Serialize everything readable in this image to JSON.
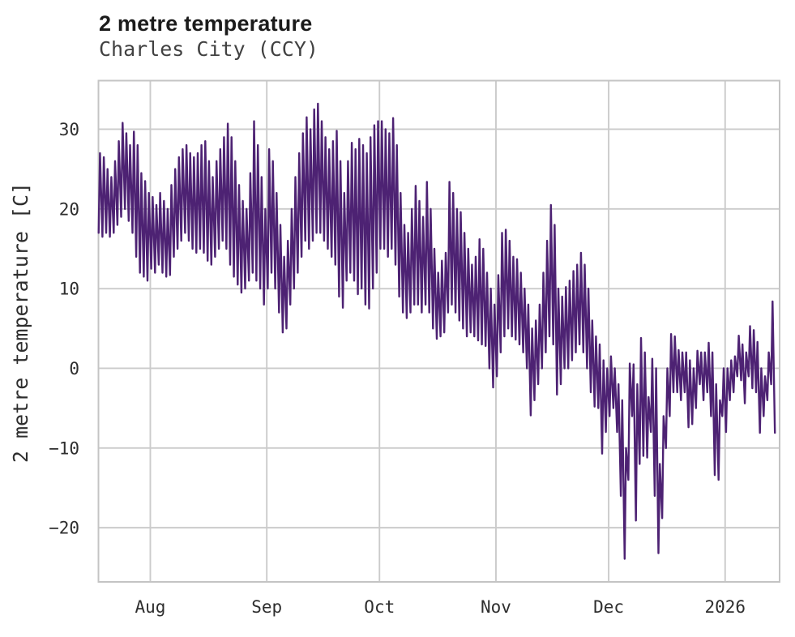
{
  "header": {
    "title": "2 metre temperature",
    "subtitle": "Charles City (CCY)"
  },
  "chart_data": {
    "type": "line",
    "title": "2 metre temperature",
    "subtitle": "Charles City (CCY)",
    "xlabel": "",
    "ylabel": "2 metre temperature [C]",
    "grid": true,
    "legend": "none",
    "line_color": "#4d2273",
    "grid_color": "#cbcbcb",
    "border_color": "#c4c4c4",
    "tick_text_color": "#2e2e2e",
    "background_color": "#ffffff",
    "x_tick_labels": [
      "Aug",
      "Sep",
      "Oct",
      "Nov",
      "Dec",
      "2026"
    ],
    "x_tick_days": [
      14,
      45,
      75,
      106,
      136,
      167
    ],
    "x_domain_days": [
      0.2,
      181.5
    ],
    "y_ticks": [
      30,
      20,
      10,
      0,
      -10,
      -20
    ],
    "y_domain": [
      -26.8,
      36.1
    ],
    "start_date": "Jul 18 (2025)",
    "end_date": "Jan 14 (2026)",
    "sampling": "daily minimum and maximum estimated from the plotted hourly curve; day 0 = Jul 18",
    "observed_extremes": {
      "max_c": 33.2,
      "max_around": "Sep 14",
      "min_c": -23.9,
      "min_around": "Dec 5"
    },
    "daily_min": [
      17,
      16.5,
      17,
      16.5,
      17,
      18,
      19,
      20,
      18.5,
      17,
      14,
      12,
      11.5,
      11,
      12.5,
      12,
      13,
      12,
      11.5,
      11.7,
      14,
      15,
      16,
      17,
      16,
      15,
      14.5,
      15,
      14.5,
      13.5,
      13,
      14,
      15,
      16,
      15,
      13,
      11.5,
      10.5,
      9.5,
      10,
      11,
      12,
      11,
      10,
      8,
      10,
      12,
      10,
      7,
      4.5,
      5,
      8,
      10,
      12,
      14,
      16,
      15,
      16,
      17,
      17,
      16,
      15,
      14,
      13,
      9,
      7.6,
      11,
      12,
      11,
      9.3,
      10,
      8,
      7.5,
      10,
      12,
      15,
      15,
      14,
      15,
      13,
      9,
      7,
      6.3,
      7,
      8,
      8,
      7,
      8,
      7,
      5,
      3.7,
      4,
      4.5,
      7,
      8,
      7,
      6,
      5,
      4,
      4.5,
      4,
      3.5,
      3,
      2.8,
      0,
      -2.4,
      -1,
      2,
      4,
      5,
      4,
      3.6,
      3,
      2,
      0,
      -5.9,
      -4,
      -2,
      0,
      2,
      4,
      3,
      -3.3,
      -2,
      0,
      0,
      1,
      2,
      3,
      2,
      0,
      -3,
      -4.8,
      -5,
      -10.7,
      -8,
      -6,
      -5,
      -8,
      -16,
      -23.9,
      -14,
      -6,
      -19.1,
      -12,
      -11,
      -11.2,
      -8,
      -16,
      -23.2,
      -18.8,
      -10,
      -6,
      -3,
      -3,
      -4,
      -3,
      -7.4,
      -7,
      -5,
      -2,
      -4,
      -3,
      -6,
      -13.4,
      -14,
      -6,
      -8,
      -4,
      -3,
      -1,
      -1.5,
      -4.4,
      -1,
      -2.5,
      -3,
      -8.1,
      -6,
      -4,
      -2,
      -8.1
    ],
    "daily_max": [
      27,
      26.5,
      25,
      24,
      26,
      28.5,
      30.8,
      29.5,
      28,
      29.7,
      28,
      24.5,
      23.5,
      22,
      21.5,
      20.5,
      22,
      21,
      20,
      23,
      25,
      26.5,
      27.5,
      28,
      27,
      26.5,
      27,
      28,
      28.5,
      26,
      24,
      26,
      27.5,
      29,
      30.7,
      29,
      26,
      23,
      21,
      20,
      24.5,
      31,
      28,
      24,
      20,
      27.5,
      26,
      22,
      18,
      14,
      16,
      20,
      24,
      27,
      29.5,
      31.5,
      30,
      32.5,
      33.2,
      31,
      29,
      27.5,
      28.5,
      29.8,
      26,
      22,
      26,
      28.3,
      27.5,
      28.8,
      28,
      27,
      29,
      30.5,
      31,
      31,
      30,
      29.5,
      31.4,
      28,
      22,
      18,
      17,
      20,
      22.9,
      21,
      19,
      23.4,
      20,
      15,
      12,
      13.5,
      14.5,
      23.4,
      22,
      20,
      19.6,
      17,
      15,
      13,
      14,
      16.2,
      15,
      12,
      10,
      8,
      11.7,
      17,
      17.4,
      16,
      14,
      13.7,
      12,
      10,
      8,
      5,
      6,
      8,
      12,
      16,
      20.5,
      18,
      10,
      9,
      10.2,
      11,
      12.2,
      13,
      14.5,
      13,
      10,
      6,
      4,
      3,
      1,
      0,
      1.5,
      0,
      -2,
      -4,
      -10,
      0.6,
      0.5,
      -2,
      3.8,
      2,
      -3.6,
      1.2,
      0,
      -12,
      -6,
      0,
      4.3,
      4,
      2.3,
      2,
      2,
      1,
      0,
      2.2,
      2,
      2,
      3.2,
      2,
      -2,
      -4,
      0,
      0,
      1,
      1.5,
      4.1,
      3,
      2,
      5.3,
      4.8,
      3.3,
      0,
      -1,
      2,
      8.4,
      -8.1
    ]
  }
}
